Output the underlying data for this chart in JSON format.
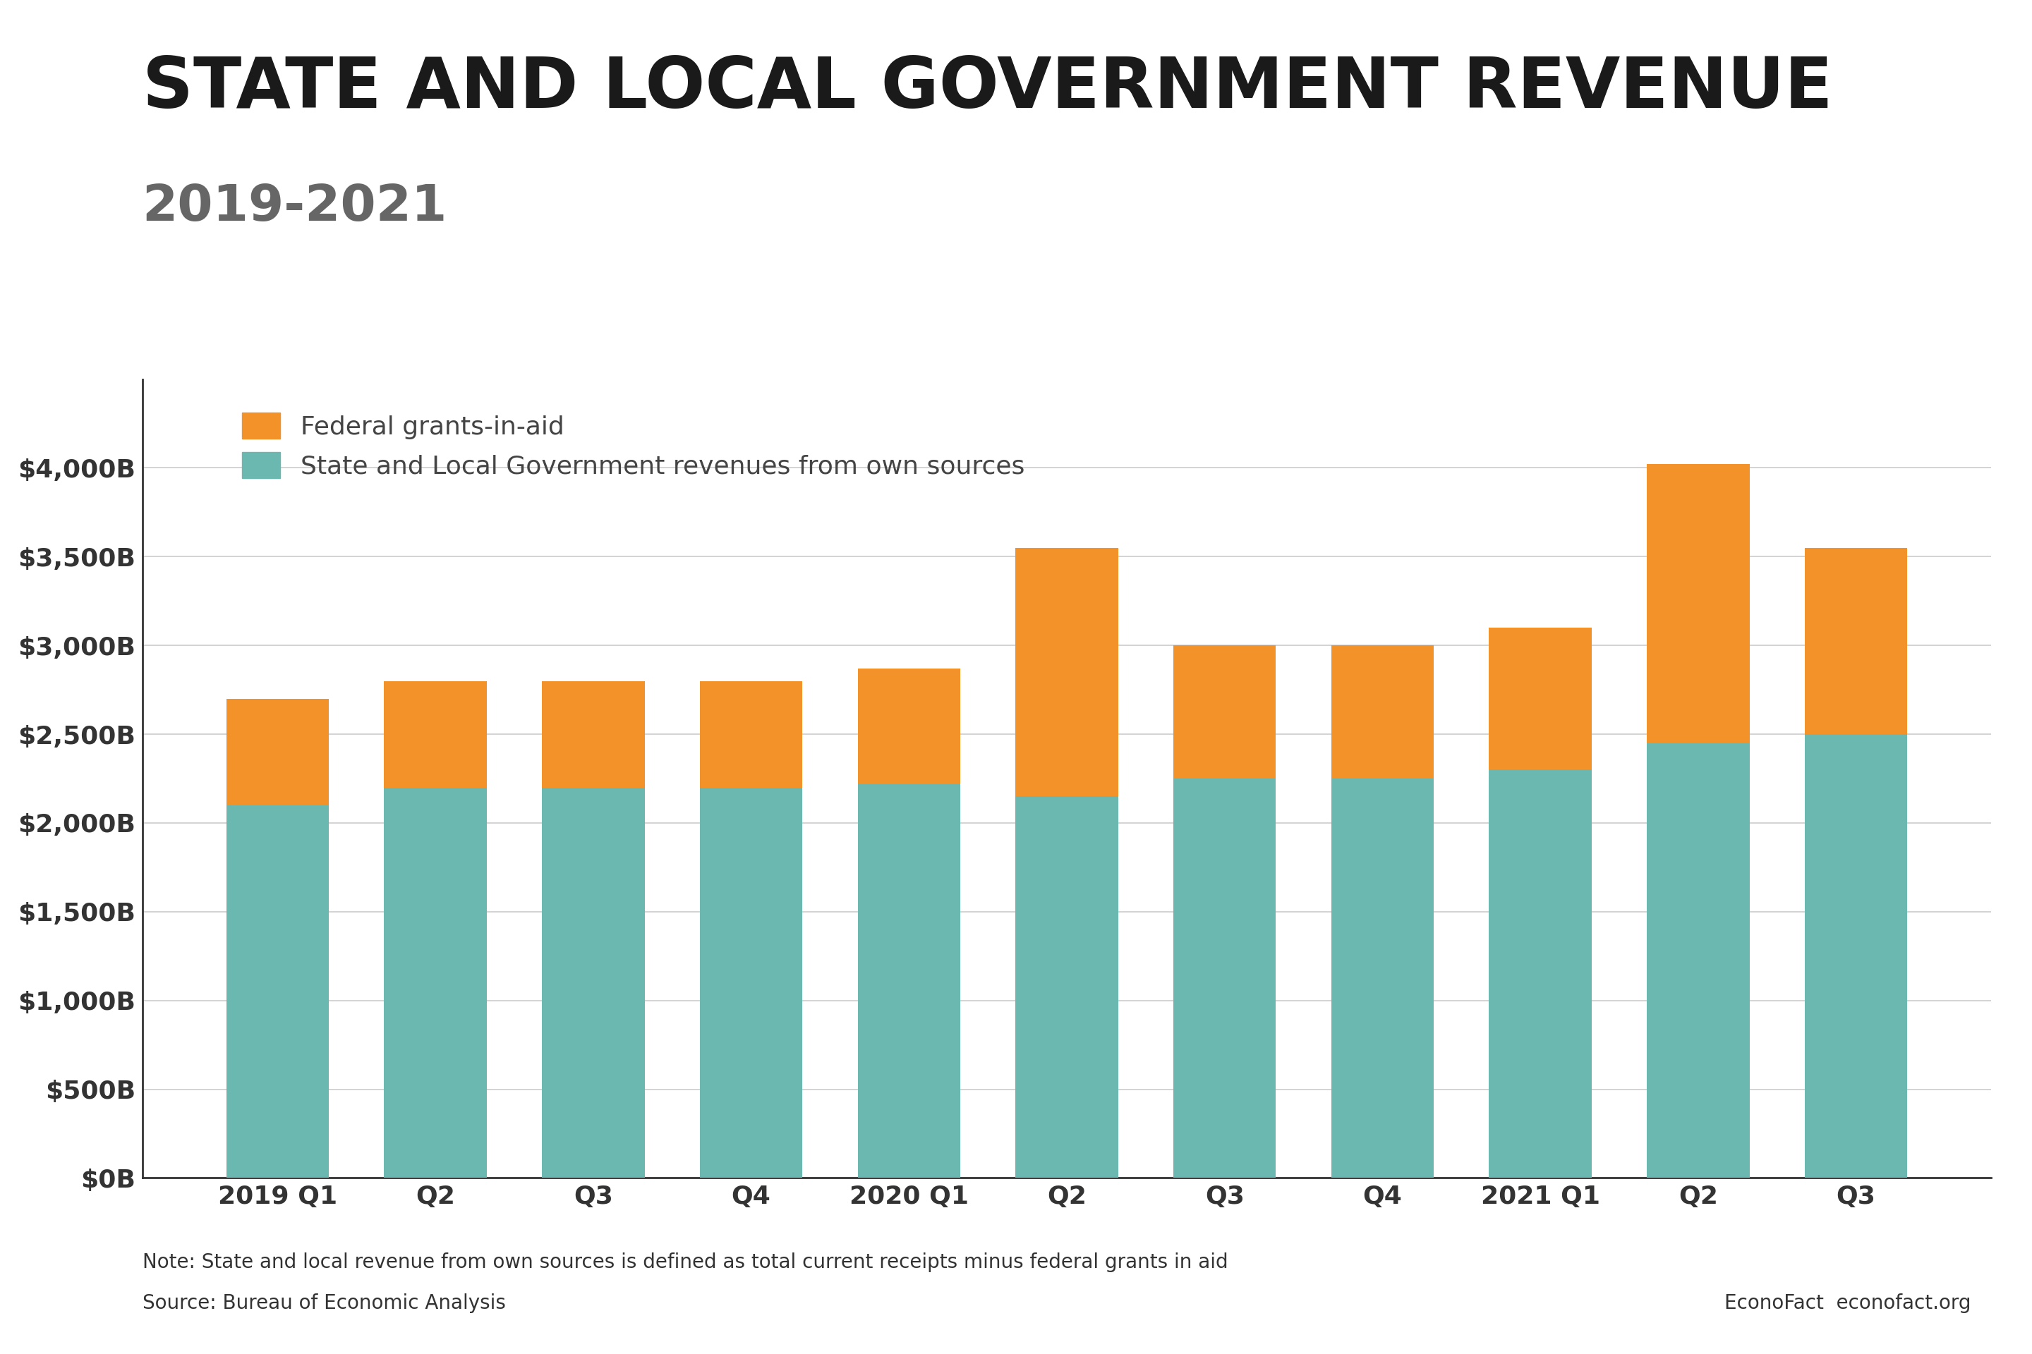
{
  "title_line1": "STATE AND LOCAL GOVERNMENT REVENUE",
  "title_line2": "2019-2021",
  "categories": [
    "2019 Q1",
    "Q2",
    "Q3",
    "Q4",
    "2020 Q1",
    "Q2",
    "Q3",
    "Q4",
    "2021 Q1",
    "Q2",
    "Q3"
  ],
  "own_source": [
    2100,
    2200,
    2200,
    2200,
    2220,
    2150,
    2250,
    2250,
    2300,
    2450,
    2500
  ],
  "federal_grants": [
    600,
    600,
    600,
    600,
    650,
    1400,
    750,
    750,
    800,
    1570,
    1050
  ],
  "own_color": "#6bb8b0",
  "federal_color": "#f4922a",
  "ylim": [
    0,
    4500
  ],
  "yticks": [
    0,
    500,
    1000,
    1500,
    2000,
    2500,
    3000,
    3500,
    4000
  ],
  "ytick_labels": [
    "$0B",
    "$500B",
    "$1,000B",
    "$1,500B",
    "$2,000B",
    "$2,500B",
    "$3,000B",
    "$3,500B",
    "$4,000B"
  ],
  "legend_federal": "Federal grants-in-aid",
  "legend_own": "State and Local Government revenues from own sources",
  "note": "Note: State and local revenue from own sources is defined as total current receipts minus federal grants in aid",
  "source": "Source: Bureau of Economic Analysis",
  "attribution": "EconoFact  econofact.org",
  "title_color": "#1a1a1a",
  "subtitle_color": "#666666",
  "axis_label_color": "#444444",
  "tick_label_color": "#333333",
  "note_color": "#333333",
  "grid_color": "#cccccc",
  "background_color": "#ffffff"
}
